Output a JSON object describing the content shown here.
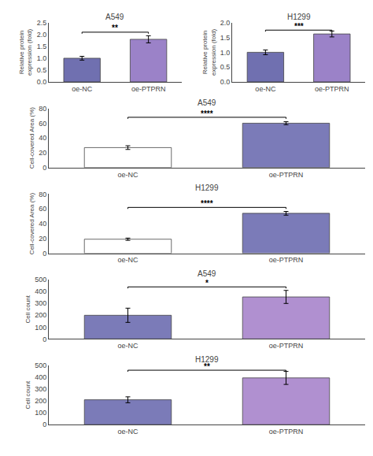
{
  "chart_data": [
    {
      "type": "bar",
      "title": "A549",
      "categories": [
        "oe-NC",
        "oe-PTPRN"
      ],
      "values": [
        1.0,
        1.8
      ],
      "errors": [
        0.08,
        0.15
      ],
      "colors": [
        "#7070b0",
        "#9b82c8"
      ],
      "ylabel": "Relative protein\nexpression (fold)",
      "ylim": [
        0,
        2.5
      ],
      "yticks": [
        {
          "value": 0.0,
          "label": "0.0"
        },
        0.5,
        {
          "value": 1.0,
          "label": "1.0"
        },
        1.5,
        {
          "value": 2.0,
          "label": "2.0"
        },
        2.5
      ],
      "significance": "**",
      "sig_bar_y": 2.1,
      "grid": false
    },
    {
      "type": "bar",
      "title": "H1299",
      "categories": [
        "oe-NC",
        "oe-PTPRN"
      ],
      "values": [
        1.0,
        1.62
      ],
      "errors": [
        0.08,
        0.1
      ],
      "colors": [
        "#7070b0",
        "#9b82c8"
      ],
      "ylabel": "Relative protein\nexpression (fold)",
      "ylim": [
        0,
        2.0
      ],
      "yticks": [
        {
          "value": 0.0,
          "label": "0.0"
        },
        0.5,
        {
          "value": 1.0,
          "label": "1.0"
        },
        1.5,
        {
          "value": 2.0,
          "label": "2.0"
        }
      ],
      "significance": "***",
      "sig_bar_y": 1.75,
      "grid": false
    },
    {
      "type": "bar",
      "title": "A549",
      "categories": [
        "oe-NC",
        "oe-PTPRN"
      ],
      "values": [
        27,
        60
      ],
      "errors": [
        2.5,
        2.0
      ],
      "colors": [
        "white",
        "#7b7bb8"
      ],
      "ylabel": "Cell-covered Area (%)",
      "ylim": [
        0,
        80
      ],
      "yticks": [
        0,
        20,
        40,
        60,
        80
      ],
      "significance": "****",
      "sig_bar_y": 68,
      "grid": false
    },
    {
      "type": "bar",
      "title": "H1299",
      "categories": [
        "oe-NC",
        "oe-PTPRN"
      ],
      "values": [
        19,
        54
      ],
      "errors": [
        1.5,
        2.5
      ],
      "colors": [
        "white",
        "#7b7bb8"
      ],
      "ylabel": "Cell-covered Area (%)",
      "ylim": [
        0,
        80
      ],
      "yticks": [
        0,
        20,
        40,
        60,
        80
      ],
      "significance": "****",
      "sig_bar_y": 62,
      "grid": false
    },
    {
      "type": "bar",
      "title": "A549",
      "categories": [
        "oe-NC",
        "oe-PTPRN"
      ],
      "values": [
        200,
        355
      ],
      "errors": [
        60,
        55
      ],
      "colors": [
        "#7b7bb8",
        "#b090d0"
      ],
      "ylabel": "Cell count",
      "ylim": [
        0,
        500
      ],
      "yticks": [
        0,
        100,
        200,
        300,
        400,
        500
      ],
      "significance": "*",
      "sig_bar_y": 440,
      "grid": false
    },
    {
      "type": "bar",
      "title": "H1299",
      "categories": [
        "oe-NC",
        "oe-PTPRN"
      ],
      "values": [
        210,
        395
      ],
      "errors": [
        25,
        55
      ],
      "colors": [
        "#7b7bb8",
        "#b090d0"
      ],
      "ylabel": "Cell count",
      "ylim": [
        0,
        500
      ],
      "yticks": [
        0,
        100,
        200,
        300,
        400,
        500
      ],
      "significance": "**",
      "sig_bar_y": 460,
      "grid": false
    }
  ]
}
